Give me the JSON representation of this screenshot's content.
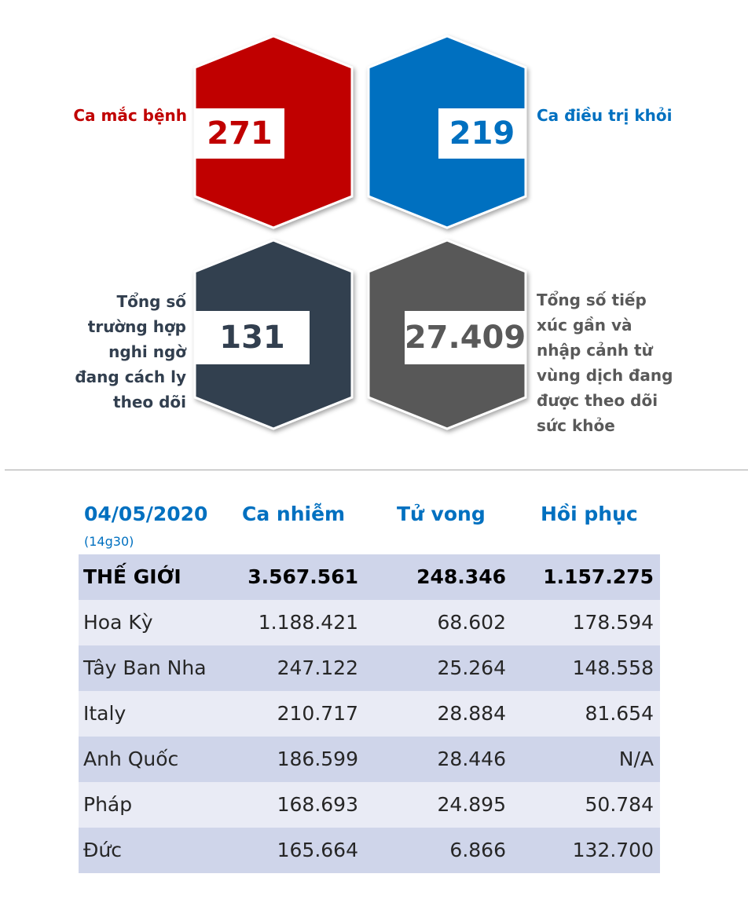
{
  "stats": [
    {
      "value": "271",
      "label": [
        "Ca mắc bệnh"
      ],
      "color": "#c00000"
    },
    {
      "value": "219",
      "label": [
        "Ca điều trị khỏi"
      ],
      "color": "#0070c0"
    },
    {
      "value": "131",
      "label": [
        "Tổng số",
        "trường hợp",
        "nghi ngờ",
        "đang cách ly",
        "theo dõi"
      ],
      "color": "#323f4f"
    },
    {
      "value": "27.409",
      "label": [
        "Tổng số tiếp",
        "xúc gần và",
        "nhập cảnh từ",
        "vùng dịch đang",
        "được theo dõi",
        "sức khỏe"
      ],
      "color": "#595959"
    }
  ],
  "table": {
    "date": "04/05/2020",
    "time": "(14g30)",
    "headers": [
      "Ca nhiễm",
      "Tử vong",
      "Hồi phục"
    ],
    "rows": [
      {
        "country": "THẾ GIỚI",
        "cases": "3.567.561",
        "deaths": "248.346",
        "recovered": "1.157.275"
      },
      {
        "country": "Hoa Kỳ",
        "cases": "1.188.421",
        "deaths": "68.602",
        "recovered": "178.594"
      },
      {
        "country": "Tây Ban Nha",
        "cases": "247.122",
        "deaths": "25.264",
        "recovered": "148.558"
      },
      {
        "country": "Italy",
        "cases": "210.717",
        "deaths": "28.884",
        "recovered": "81.654"
      },
      {
        "country": "Anh Quốc",
        "cases": "186.599",
        "deaths": "28.446",
        "recovered": "N/A"
      },
      {
        "country": "Pháp",
        "cases": "168.693",
        "deaths": "24.895",
        "recovered": "50.784"
      },
      {
        "country": "Đức",
        "cases": "165.664",
        "deaths": "6.866",
        "recovered": "132.700"
      }
    ]
  }
}
